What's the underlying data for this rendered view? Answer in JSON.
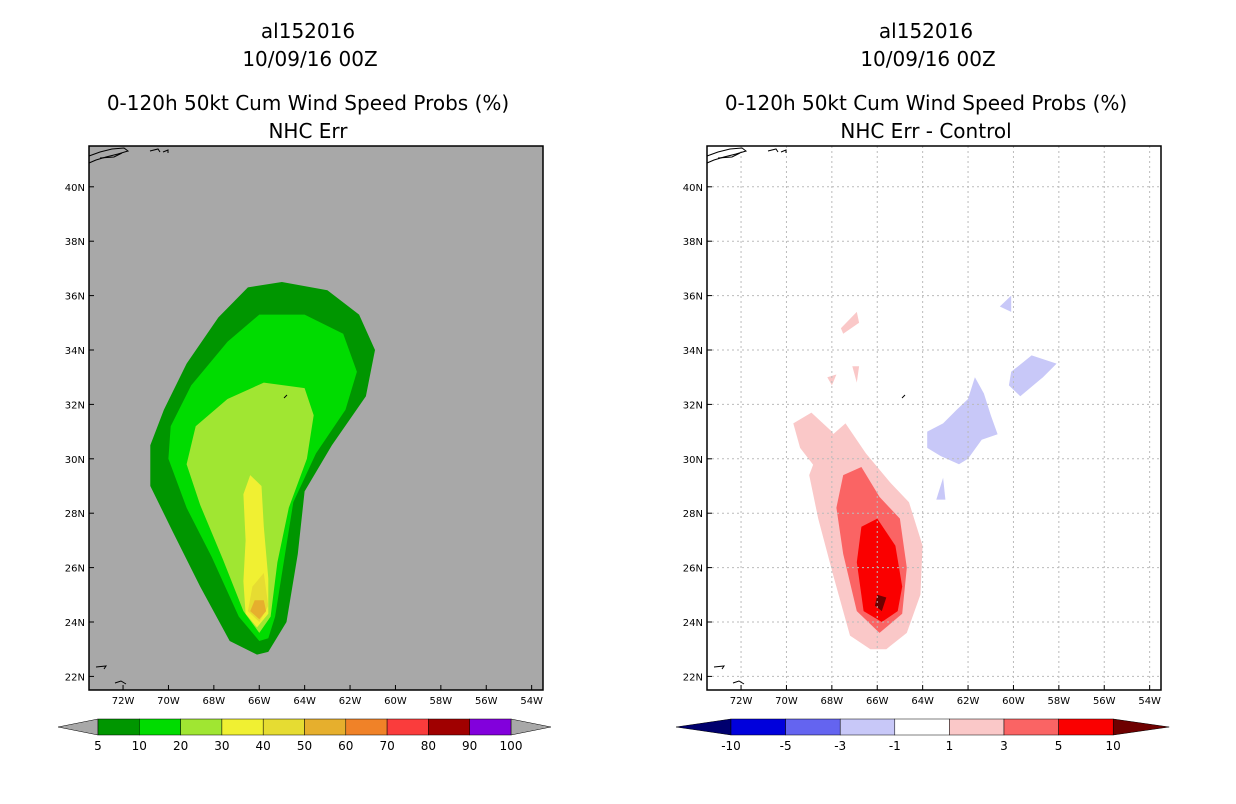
{
  "chart_data": [
    {
      "type": "filled-contour-map",
      "storm_id": "al152016",
      "date": "10/09/16 00Z",
      "title": "0-120h 50kt Cum Wind Speed Probs (%)",
      "subtitle": "NHC Err",
      "x_ticks": [
        "72W",
        "70W",
        "68W",
        "66W",
        "64W",
        "62W",
        "60W",
        "58W",
        "56W",
        "54W"
      ],
      "y_ticks": [
        "40N",
        "38N",
        "36N",
        "34N",
        "32N",
        "30N",
        "28N",
        "26N",
        "24N",
        "22N"
      ],
      "lon_range": [
        -73.5,
        -53.5
      ],
      "lat_range": [
        21.5,
        41.5
      ],
      "grid": false,
      "background": "#a8a8a8",
      "colorbar": {
        "labels": [
          "5",
          "10",
          "20",
          "30",
          "40",
          "50",
          "60",
          "70",
          "80",
          "90",
          "100"
        ],
        "colors": [
          "#009600",
          "#00dc00",
          "#a0e632",
          "#f0f032",
          "#e6dc32",
          "#e6af2d",
          "#f08228",
          "#fa3c3c",
          "#a00000",
          "#8200dc"
        ],
        "extend_color": "#a8a8a8"
      },
      "contours": [
        {
          "level": 5,
          "color": "#009600",
          "polygon": [
            [
              -66.1,
              22.8
            ],
            [
              -67.3,
              23.3
            ],
            [
              -68.6,
              25.3
            ],
            [
              -69.8,
              27.3
            ],
            [
              -70.8,
              29.0
            ],
            [
              -70.8,
              30.5
            ],
            [
              -70.2,
              31.8
            ],
            [
              -69.2,
              33.5
            ],
            [
              -67.8,
              35.2
            ],
            [
              -66.5,
              36.3
            ],
            [
              -65.0,
              36.5
            ],
            [
              -63.0,
              36.2
            ],
            [
              -61.6,
              35.3
            ],
            [
              -60.9,
              34.0
            ],
            [
              -61.3,
              32.3
            ],
            [
              -62.8,
              30.5
            ],
            [
              -64.0,
              28.8
            ],
            [
              -64.3,
              26.5
            ],
            [
              -64.8,
              24.0
            ],
            [
              -65.6,
              22.9
            ]
          ]
        },
        {
          "level": 10,
          "color": "#00dc00",
          "polygon": [
            [
              -66.0,
              23.3
            ],
            [
              -66.9,
              24.2
            ],
            [
              -68.1,
              26.4
            ],
            [
              -69.2,
              28.2
            ],
            [
              -70.0,
              30.0
            ],
            [
              -69.9,
              31.2
            ],
            [
              -69.0,
              32.7
            ],
            [
              -67.4,
              34.3
            ],
            [
              -66.0,
              35.3
            ],
            [
              -64.0,
              35.3
            ],
            [
              -62.3,
              34.6
            ],
            [
              -61.7,
              33.2
            ],
            [
              -62.2,
              31.8
            ],
            [
              -63.5,
              30.2
            ],
            [
              -64.5,
              28.4
            ],
            [
              -64.9,
              26.3
            ],
            [
              -65.3,
              24.2
            ],
            [
              -65.6,
              23.4
            ]
          ]
        },
        {
          "level": 20,
          "color": "#a0e632",
          "polygon": [
            [
              -66.0,
              23.6
            ],
            [
              -66.7,
              24.4
            ],
            [
              -67.6,
              26.3
            ],
            [
              -68.6,
              28.3
            ],
            [
              -69.2,
              29.8
            ],
            [
              -68.8,
              31.2
            ],
            [
              -67.4,
              32.2
            ],
            [
              -65.8,
              32.8
            ],
            [
              -64.0,
              32.6
            ],
            [
              -63.6,
              31.6
            ],
            [
              -63.9,
              30.0
            ],
            [
              -64.7,
              28.2
            ],
            [
              -65.2,
              26.2
            ],
            [
              -65.5,
              24.2
            ]
          ]
        },
        {
          "level": 30,
          "color": "#f0f032",
          "polygon": [
            [
              -66.1,
              23.8
            ],
            [
              -66.6,
              24.3
            ],
            [
              -66.7,
              25.5
            ],
            [
              -66.6,
              27.0
            ],
            [
              -66.7,
              28.7
            ],
            [
              -66.4,
              29.4
            ],
            [
              -65.9,
              29.0
            ],
            [
              -65.8,
              27.5
            ],
            [
              -65.6,
              25.6
            ],
            [
              -65.6,
              24.3
            ]
          ]
        },
        {
          "level": 40,
          "color": "#e6dc32",
          "polygon": [
            [
              -66.0,
              24.0
            ],
            [
              -66.5,
              24.4
            ],
            [
              -66.3,
              25.3
            ],
            [
              -65.8,
              25.8
            ],
            [
              -65.6,
              24.6
            ]
          ]
        },
        {
          "level": 50,
          "color": "#e6af2d",
          "polygon": [
            [
              -66.0,
              24.1
            ],
            [
              -66.4,
              24.4
            ],
            [
              -66.2,
              24.8
            ],
            [
              -65.8,
              24.8
            ],
            [
              -65.7,
              24.4
            ]
          ]
        }
      ]
    },
    {
      "type": "filled-contour-map",
      "storm_id": "al152016",
      "date": "10/09/16 00Z",
      "title": "0-120h 50kt Cum Wind Speed Probs (%)",
      "subtitle": "NHC Err - Control",
      "x_ticks": [
        "72W",
        "70W",
        "68W",
        "66W",
        "64W",
        "62W",
        "60W",
        "58W",
        "56W",
        "54W"
      ],
      "y_ticks": [
        "40N",
        "38N",
        "36N",
        "34N",
        "32N",
        "30N",
        "28N",
        "26N",
        "24N",
        "22N"
      ],
      "lon_range": [
        -73.5,
        -53.5
      ],
      "lat_range": [
        21.5,
        41.5
      ],
      "grid": true,
      "background": "#ffffff",
      "colorbar": {
        "labels": [
          "-10",
          "-5",
          "-3",
          "-1",
          "1",
          "3",
          "5",
          "10"
        ],
        "colors": [
          "#0000dc",
          "#6464f0",
          "#c8c8f8",
          "#ffffff",
          "#fac8c8",
          "#fa6464",
          "#fa0000"
        ],
        "low_extend_color": "#00006e",
        "high_extend_color": "#6e0000"
      },
      "contours": [
        {
          "level": 1,
          "color": "#fac8c8",
          "polygon": [
            [
              -66.3,
              23.0
            ],
            [
              -67.2,
              23.5
            ],
            [
              -67.9,
              25.6
            ],
            [
              -68.6,
              27.8
            ],
            [
              -69.0,
              29.4
            ],
            [
              -68.5,
              30.5
            ],
            [
              -67.4,
              31.3
            ],
            [
              -66.5,
              30.2
            ],
            [
              -65.4,
              29.1
            ],
            [
              -64.6,
              28.4
            ],
            [
              -64.0,
              26.8
            ],
            [
              -64.1,
              25.0
            ],
            [
              -64.7,
              23.6
            ],
            [
              -65.6,
              23.0
            ]
          ]
        },
        {
          "level": 1,
          "color": "#fac8c8",
          "polygon": [
            [
              -68.1,
              29.0
            ],
            [
              -69.4,
              30.4
            ],
            [
              -69.7,
              31.3
            ],
            [
              -68.9,
              31.7
            ],
            [
              -68.0,
              31.0
            ],
            [
              -67.4,
              30.2
            ]
          ]
        },
        {
          "level": 1,
          "color": "#fac8c8",
          "polygon": [
            [
              -67.6,
              34.8
            ],
            [
              -66.9,
              35.4
            ],
            [
              -66.8,
              35.0
            ],
            [
              -67.5,
              34.6
            ]
          ]
        },
        {
          "level": 1,
          "color": "#fac8c8",
          "polygon": [
            [
              -68.0,
              32.7
            ],
            [
              -68.2,
              33.0
            ],
            [
              -67.8,
              33.1
            ]
          ]
        },
        {
          "level": 1,
          "color": "#fac8c8",
          "polygon": [
            [
              -66.9,
              32.8
            ],
            [
              -67.1,
              33.4
            ],
            [
              -66.8,
              33.4
            ]
          ]
        },
        {
          "level": 3,
          "color": "#fa6464",
          "polygon": [
            [
              -65.9,
              23.6
            ],
            [
              -66.9,
              24.4
            ],
            [
              -67.5,
              26.5
            ],
            [
              -67.8,
              28.2
            ],
            [
              -67.5,
              29.4
            ],
            [
              -66.7,
              29.7
            ],
            [
              -65.9,
              28.6
            ],
            [
              -65.0,
              27.8
            ],
            [
              -64.7,
              26.0
            ],
            [
              -64.9,
              24.3
            ]
          ]
        },
        {
          "level": 5,
          "color": "#fa0000",
          "polygon": [
            [
              -65.8,
              24.0
            ],
            [
              -66.6,
              24.4
            ],
            [
              -66.9,
              26.2
            ],
            [
              -66.7,
              27.5
            ],
            [
              -66.0,
              27.8
            ],
            [
              -65.2,
              26.8
            ],
            [
              -64.9,
              25.3
            ],
            [
              -65.1,
              24.4
            ]
          ]
        },
        {
          "level": 10,
          "color": "#6e0000",
          "polygon": [
            [
              -65.8,
              24.4
            ],
            [
              -66.1,
              24.6
            ],
            [
              -66.0,
              25.0
            ],
            [
              -65.6,
              24.9
            ]
          ]
        },
        {
          "level": -1,
          "color": "#c8c8f8",
          "polygon": [
            [
              -62.4,
              29.8
            ],
            [
              -62.0,
              30.0
            ],
            [
              -61.4,
              30.7
            ],
            [
              -60.7,
              30.9
            ],
            [
              -61.0,
              31.6
            ],
            [
              -61.3,
              32.4
            ],
            [
              -61.7,
              33.0
            ],
            [
              -62.0,
              32.2
            ],
            [
              -62.5,
              31.8
            ],
            [
              -63.1,
              31.3
            ],
            [
              -63.8,
              31.0
            ],
            [
              -63.8,
              30.4
            ],
            [
              -63.2,
              30.1
            ]
          ]
        },
        {
          "level": -1,
          "color": "#c8c8f8",
          "polygon": [
            [
              -59.7,
              32.3
            ],
            [
              -58.7,
              33.0
            ],
            [
              -58.1,
              33.5
            ],
            [
              -59.2,
              33.8
            ],
            [
              -60.1,
              33.2
            ],
            [
              -60.2,
              32.7
            ]
          ]
        },
        {
          "level": -1,
          "color": "#c8c8f8",
          "polygon": [
            [
              -60.1,
              35.4
            ],
            [
              -60.1,
              36.0
            ],
            [
              -60.6,
              35.6
            ]
          ]
        },
        {
          "level": -1,
          "color": "#c8c8f8",
          "polygon": [
            [
              -63.4,
              28.5
            ],
            [
              -63.0,
              28.5
            ],
            [
              -63.1,
              29.3
            ]
          ]
        }
      ]
    }
  ]
}
